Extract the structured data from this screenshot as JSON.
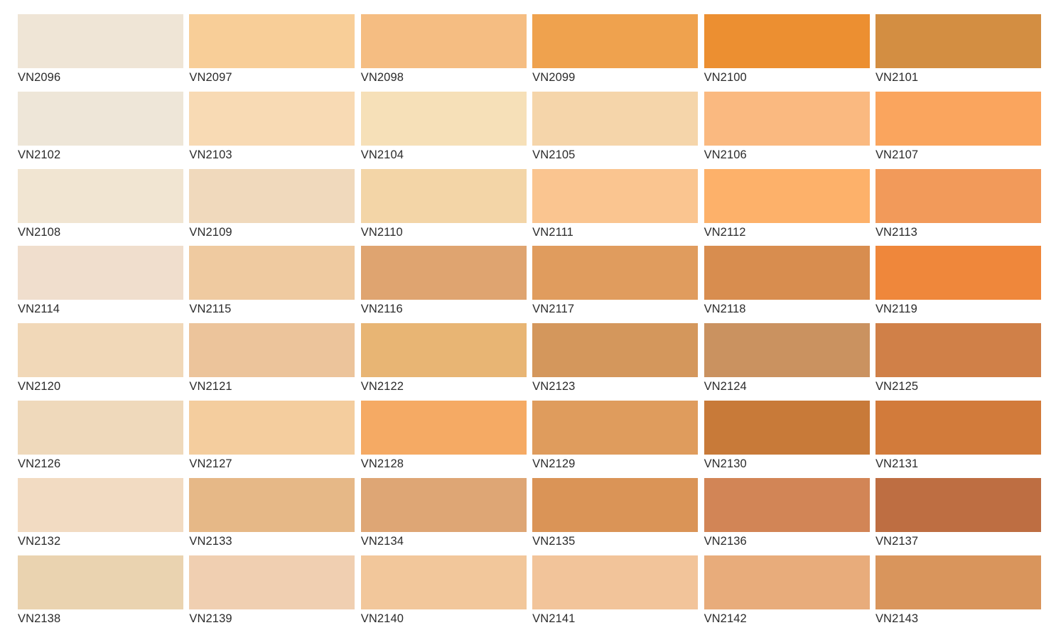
{
  "swatches": [
    {
      "code": "VN2096",
      "color": "#EFE5D6"
    },
    {
      "code": "VN2097",
      "color": "#F8CE98"
    },
    {
      "code": "VN2098",
      "color": "#F5BD82"
    },
    {
      "code": "VN2099",
      "color": "#EFA24E"
    },
    {
      "code": "VN2100",
      "color": "#EC8F31"
    },
    {
      "code": "VN2101",
      "color": "#D38E42"
    },
    {
      "code": "VN2102",
      "color": "#EEE6D8"
    },
    {
      "code": "VN2103",
      "color": "#F8DAB4"
    },
    {
      "code": "VN2104",
      "color": "#F6E0B8"
    },
    {
      "code": "VN2105",
      "color": "#F5D5AA"
    },
    {
      "code": "VN2106",
      "color": "#FAB980"
    },
    {
      "code": "VN2107",
      "color": "#FAA55E"
    },
    {
      "code": "VN2108",
      "color": "#F1E5D2"
    },
    {
      "code": "VN2109",
      "color": "#F0D9BC"
    },
    {
      "code": "VN2110",
      "color": "#F3D5A7"
    },
    {
      "code": "VN2111",
      "color": "#FAC590"
    },
    {
      "code": "VN2112",
      "color": "#FDB16A"
    },
    {
      "code": "VN2113",
      "color": "#F29A5A"
    },
    {
      "code": "VN2114",
      "color": "#F0DECD"
    },
    {
      "code": "VN2115",
      "color": "#EFCAA0"
    },
    {
      "code": "VN2116",
      "color": "#DFA470"
    },
    {
      "code": "VN2117",
      "color": "#E09C5E"
    },
    {
      "code": "VN2118",
      "color": "#D88D4F"
    },
    {
      "code": "VN2119",
      "color": "#EF873B"
    },
    {
      "code": "VN2120",
      "color": "#F1D8B8"
    },
    {
      "code": "VN2121",
      "color": "#ECC49B"
    },
    {
      "code": "VN2122",
      "color": "#E8B574"
    },
    {
      "code": "VN2123",
      "color": "#D4975C"
    },
    {
      "code": "VN2124",
      "color": "#CA9260"
    },
    {
      "code": "VN2125",
      "color": "#D08048"
    },
    {
      "code": "VN2126",
      "color": "#EFD9BB"
    },
    {
      "code": "VN2127",
      "color": "#F4CD9E"
    },
    {
      "code": "VN2128",
      "color": "#F5AA64"
    },
    {
      "code": "VN2129",
      "color": "#DF9C5D"
    },
    {
      "code": "VN2130",
      "color": "#C87A39"
    },
    {
      "code": "VN2131",
      "color": "#D27B3B"
    },
    {
      "code": "VN2132",
      "color": "#F2DBC2"
    },
    {
      "code": "VN2133",
      "color": "#E6B887"
    },
    {
      "code": "VN2134",
      "color": "#DEA675"
    },
    {
      "code": "VN2135",
      "color": "#DA9457"
    },
    {
      "code": "VN2136",
      "color": "#D28556"
    },
    {
      "code": "VN2137",
      "color": "#BE6E42"
    },
    {
      "code": "VN2138",
      "color": "#EAD3B0"
    },
    {
      "code": "VN2139",
      "color": "#F0CFB1"
    },
    {
      "code": "VN2140",
      "color": "#F2C79B"
    },
    {
      "code": "VN2141",
      "color": "#F2C49A"
    },
    {
      "code": "VN2142",
      "color": "#E8AC7B"
    },
    {
      "code": "VN2143",
      "color": "#D9955C"
    }
  ]
}
